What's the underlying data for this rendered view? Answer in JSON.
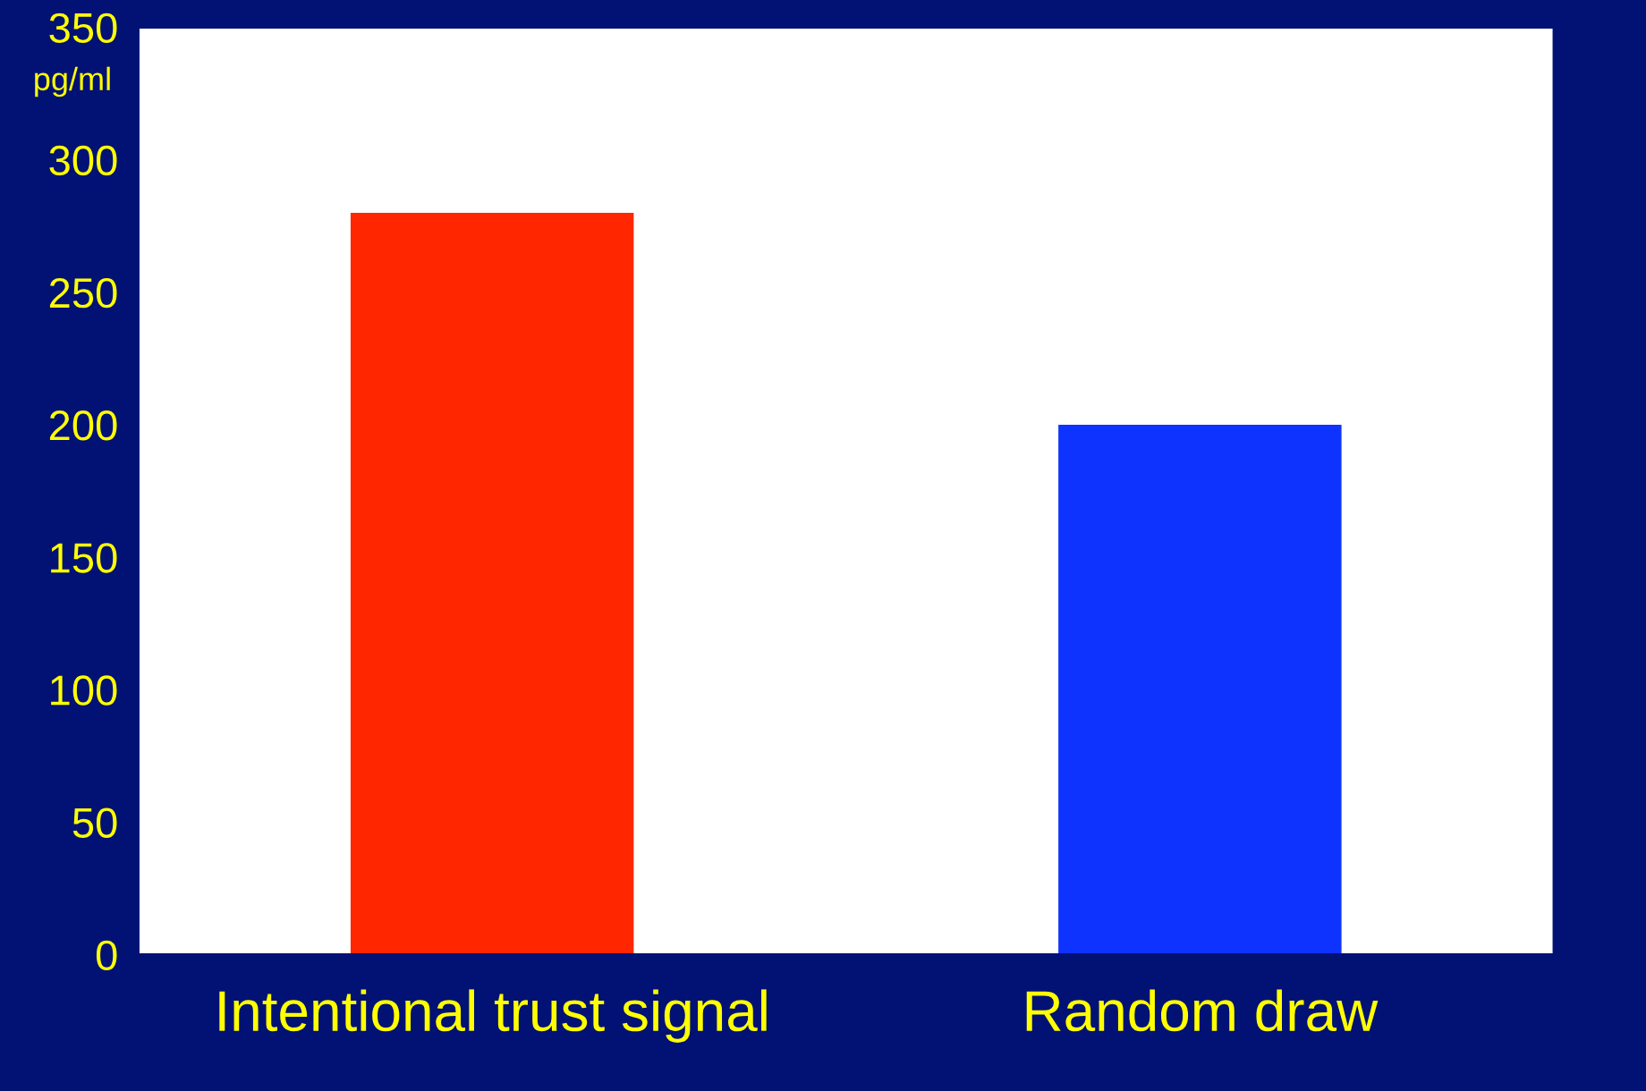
{
  "chart_data": {
    "type": "bar",
    "ylabel": "pg/ml",
    "categories": [
      "Intentional trust signal",
      "Random draw"
    ],
    "values": [
      280,
      200
    ],
    "colors": [
      "#ff2600",
      "#0f33ff"
    ],
    "ylim": [
      0,
      350
    ],
    "yticks": [
      0,
      50,
      100,
      150,
      200,
      250,
      300,
      350
    ],
    "grid": false,
    "legend": false
  }
}
